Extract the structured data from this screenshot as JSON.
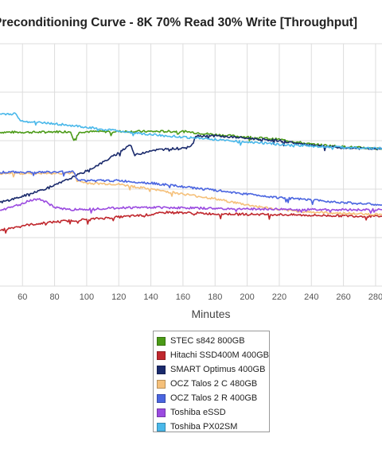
{
  "chart_data": {
    "type": "line",
    "title": "Preconditioning Curve - 8K 70% Read 30% Write [Throughput]",
    "xlabel": "Minutes",
    "ylabel": "",
    "x_ticks": [
      60,
      80,
      100,
      120,
      140,
      160,
      180,
      200,
      220,
      240,
      260,
      280
    ],
    "xlim": [
      46,
      284
    ],
    "ylim": [
      0,
      100
    ],
    "grid": true,
    "legend_position": "bottom-center",
    "series": [
      {
        "name": "STEC s842 800GB",
        "color": "#4a9a16",
        "x": [
          46,
          60,
          70,
          80,
          90,
          92,
          96,
          100,
          120,
          130,
          140,
          160,
          180,
          200,
          220,
          240,
          260,
          284
        ],
        "y": [
          63.5,
          63.5,
          63.5,
          63.7,
          63.7,
          60.5,
          63.7,
          63.7,
          63.8,
          63.8,
          63.8,
          63.8,
          62.5,
          61.5,
          60.5,
          58.5,
          57.5,
          56.5
        ]
      },
      {
        "name": "Hitachi SSD400M 400GB",
        "color": "#c0272d",
        "x": [
          46,
          60,
          80,
          100,
          120,
          140,
          150,
          160,
          180,
          200,
          220,
          240,
          260,
          284
        ],
        "y": [
          23.0,
          25.0,
          26.5,
          27.5,
          28.5,
          29.5,
          30.5,
          30.3,
          29.8,
          29.7,
          29.5,
          29.2,
          29.0,
          28.7
        ]
      },
      {
        "name": "SMART Optimus 400GB",
        "color": "#1a2a6c",
        "x": [
          46,
          60,
          80,
          100,
          110,
          120,
          127,
          130,
          140,
          150,
          160,
          165,
          168,
          180,
          200,
          220,
          240,
          260,
          284
        ],
        "y": [
          34.5,
          37.0,
          41.5,
          47.5,
          51.0,
          55.0,
          58.5,
          54.0,
          56.0,
          56.5,
          57.0,
          58.0,
          62.0,
          62.0,
          61.0,
          60.0,
          58.0,
          57.0,
          56.5
        ]
      },
      {
        "name": "OCZ Talos 2 C 480GB",
        "color": "#f5c07a",
        "x": [
          46,
          60,
          80,
          92,
          94,
          100,
          120,
          140,
          160,
          180,
          200,
          220,
          240,
          260,
          284
        ],
        "y": [
          46.5,
          46.5,
          46.5,
          46.7,
          43.5,
          42.5,
          42.0,
          40.0,
          38.0,
          36.0,
          33.5,
          31.5,
          30.5,
          30.0,
          29.5
        ]
      },
      {
        "name": "OCZ Talos 2 R 400GB",
        "color": "#4a65e0",
        "x": [
          46,
          60,
          80,
          92,
          94,
          100,
          120,
          140,
          160,
          180,
          200,
          220,
          240,
          260,
          284
        ],
        "y": [
          47.0,
          47.0,
          47.0,
          47.3,
          44.0,
          43.5,
          43.5,
          42.5,
          41.0,
          39.5,
          38.0,
          36.5,
          35.5,
          34.5,
          33.5
        ]
      },
      {
        "name": "Toshiba eSSD",
        "color": "#9b4be0",
        "x": [
          46,
          55,
          60,
          65,
          70,
          75,
          80,
          90,
          100,
          120,
          140,
          160,
          180,
          200,
          220,
          240,
          260,
          284
        ],
        "y": [
          31.0,
          33.0,
          34.0,
          35.5,
          36.0,
          34.5,
          32.5,
          31.5,
          31.8,
          32.3,
          32.5,
          32.3,
          32.0,
          31.8,
          31.7,
          31.6,
          31.5,
          31.5
        ]
      },
      {
        "name": "Toshiba PX02SM",
        "color": "#4ab8ea",
        "x": [
          46,
          56,
          58,
          60,
          80,
          100,
          120,
          140,
          160,
          180,
          200,
          220,
          240,
          260,
          284
        ],
        "y": [
          71.0,
          71.0,
          69.0,
          68.0,
          67.0,
          65.5,
          64.0,
          62.5,
          61.5,
          60.5,
          59.5,
          58.5,
          57.8,
          57.2,
          56.8
        ]
      }
    ]
  }
}
